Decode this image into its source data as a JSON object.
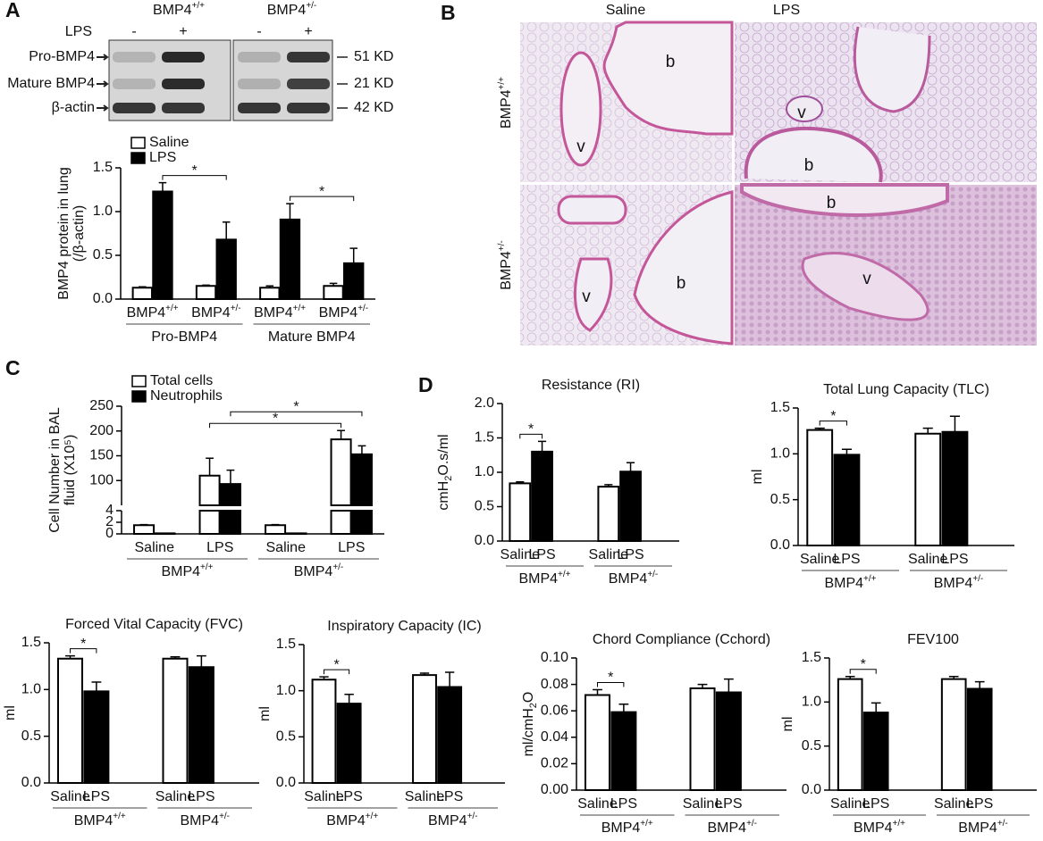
{
  "panel_labels": [
    "A",
    "B",
    "C",
    "D"
  ],
  "blot": {
    "genotypes": [
      "BMP4+/+",
      "BMP4+/-"
    ],
    "treatment": "LPS",
    "lanes": [
      "-",
      "+",
      "-",
      "+"
    ],
    "rows": [
      {
        "label": "Pro-BMP4",
        "size": "51 KD"
      },
      {
        "label": "Mature BMP4",
        "size": "21 KD"
      },
      {
        "label": "β-actin",
        "size": "42 KD"
      }
    ]
  },
  "histology": {
    "columns": [
      "Saline",
      "LPS"
    ],
    "rows": [
      "BMP4+/+",
      "BMP4+/-"
    ],
    "marks": [
      [
        "v",
        "b"
      ],
      [
        "v",
        "b"
      ],
      [
        "v",
        "b"
      ],
      [
        "b",
        "v"
      ]
    ]
  },
  "chart_data": [
    {
      "type": "bar",
      "ylabel": [
        "BMP4 protein in lung",
        "(/β-actin)"
      ],
      "categories": [
        "BMP4+/+",
        "BMP4+/-",
        "BMP4+/+",
        "BMP4+/-"
      ],
      "groups": [
        "Pro-BMP4",
        "Mature BMP4"
      ],
      "series": [
        {
          "name": "Saline",
          "color": "#ffffff",
          "values": [
            0.13,
            0.15,
            0.13,
            0.15
          ],
          "errors": [
            0.01,
            0.01,
            0.02,
            0.03
          ]
        },
        {
          "name": "LPS",
          "color": "#000000",
          "values": [
            1.23,
            0.68,
            0.91,
            0.41
          ],
          "errors": [
            0.1,
            0.2,
            0.18,
            0.17
          ]
        }
      ],
      "ylim": [
        0,
        1.5
      ],
      "yticks": [
        {
          "value": 0,
          "label": "0.0"
        },
        {
          "value": 0.5,
          "label": "0.5"
        },
        {
          "value": 1,
          "label": "1.0"
        },
        {
          "value": 1.5,
          "label": "1.5"
        }
      ],
      "legend": "top-left",
      "comparisons": [
        {
          "label": "*",
          "between": [
            [
              1,
              0
            ],
            [
              1,
              1
            ]
          ]
        },
        {
          "label": "*",
          "between": [
            [
              1,
              2
            ],
            [
              1,
              3
            ]
          ]
        }
      ]
    },
    {
      "type": "bar",
      "ylabel": [
        "Cell Number in BAL",
        "fluid (X10⁵)"
      ],
      "categories": [
        "Saline",
        "LPS",
        "Saline",
        "LPS"
      ],
      "groups": [
        "BMP4+/+",
        "BMP4+/-"
      ],
      "series": [
        {
          "name": "Total cells",
          "color": "#ffffff",
          "values": [
            1.5,
            110,
            1.5,
            183
          ],
          "errors": [
            0.1,
            35,
            0.1,
            18
          ]
        },
        {
          "name": "Neutrophils",
          "color": "#000000",
          "values": [
            0.1,
            93,
            0.1,
            153
          ],
          "errors": [
            0,
            28,
            0,
            17
          ]
        }
      ],
      "ylim": [
        0,
        250
      ],
      "ybreak": [
        4,
        50
      ],
      "yticks": [
        0,
        2,
        4,
        100,
        150,
        200,
        250
      ],
      "legend": "top-left",
      "comparisons": [
        {
          "label": "*",
          "between": [
            [
              0,
              1
            ],
            [
              0,
              3
            ]
          ]
        },
        {
          "label": "*",
          "between": [
            [
              1,
              1
            ],
            [
              1,
              3
            ]
          ]
        }
      ]
    },
    {
      "type": "bar",
      "title": "Resistance (RI)",
      "ylabel": "cmH2O.s/ml",
      "categories": [
        "Saline",
        "LPS",
        "Saline",
        "LPS"
      ],
      "groups": [
        "BMP4+/+",
        "BMP4+/-"
      ],
      "values": [
        0.84,
        1.3,
        0.79,
        1.01
      ],
      "errors": [
        0.02,
        0.15,
        0.03,
        0.13
      ],
      "colors": [
        "#ffffff",
        "#000000",
        "#ffffff",
        "#000000"
      ],
      "ylim": [
        0,
        2
      ],
      "yticks": [
        {
          "value": 0,
          "label": "0.0"
        },
        {
          "value": 0.5,
          "label": "0.5"
        },
        {
          "value": 1,
          "label": "1.0"
        },
        {
          "value": 1.5,
          "label": "1.5"
        },
        {
          "value": 2,
          "label": "2.0"
        }
      ],
      "comparisons": [
        {
          "label": "*",
          "between": [
            0,
            1
          ]
        }
      ]
    },
    {
      "type": "bar",
      "title": "Total Lung Capacity (TLC)",
      "ylabel": "ml",
      "categories": [
        "Saline",
        "LPS",
        "Saline",
        "LPS"
      ],
      "groups": [
        "BMP4+/+",
        "BMP4+/-"
      ],
      "values": [
        1.26,
        0.99,
        1.22,
        1.24
      ],
      "errors": [
        0.02,
        0.06,
        0.06,
        0.17
      ],
      "colors": [
        "#ffffff",
        "#000000",
        "#ffffff",
        "#000000"
      ],
      "ylim": [
        0,
        1.5
      ],
      "yticks": [
        {
          "value": 0,
          "label": "0.0"
        },
        {
          "value": 0.5,
          "label": "0.5"
        },
        {
          "value": 1,
          "label": "1.0"
        },
        {
          "value": 1.5,
          "label": "1.5"
        }
      ],
      "comparisons": [
        {
          "label": "*",
          "between": [
            0,
            1
          ]
        }
      ]
    },
    {
      "type": "bar",
      "title": "Forced Vital Capacity (FVC)",
      "ylabel": "ml",
      "categories": [
        "Saline",
        "LPS",
        "Saline",
        "LPS"
      ],
      "groups": [
        "BMP4+/+",
        "BMP4+/-"
      ],
      "values": [
        1.33,
        0.98,
        1.33,
        1.24
      ],
      "errors": [
        0.03,
        0.1,
        0.02,
        0.12
      ],
      "colors": [
        "#ffffff",
        "#000000",
        "#ffffff",
        "#000000"
      ],
      "ylim": [
        0,
        1.5
      ],
      "yticks": [
        {
          "value": 0,
          "label": "0.0"
        },
        {
          "value": 0.5,
          "label": "0.5"
        },
        {
          "value": 1,
          "label": "1.0"
        },
        {
          "value": 1.5,
          "label": "1.5"
        }
      ],
      "comparisons": [
        {
          "label": "*",
          "between": [
            0,
            1
          ]
        }
      ]
    },
    {
      "type": "bar",
      "title": "Inspiratory Capacity (IC)",
      "ylabel": "ml",
      "categories": [
        "Saline",
        "LPS",
        "Saline",
        "LPS"
      ],
      "groups": [
        "BMP4+/+",
        "BMP4+/-"
      ],
      "values": [
        1.12,
        0.86,
        1.17,
        1.04
      ],
      "errors": [
        0.03,
        0.1,
        0.02,
        0.16
      ],
      "colors": [
        "#ffffff",
        "#000000",
        "#ffffff",
        "#000000"
      ],
      "ylim": [
        0,
        1.5
      ],
      "yticks": [
        {
          "value": 0,
          "label": "0.0"
        },
        {
          "value": 0.5,
          "label": "0.5"
        },
        {
          "value": 1,
          "label": "1.0"
        },
        {
          "value": 1.5,
          "label": "1.5"
        }
      ],
      "comparisons": [
        {
          "label": "*",
          "between": [
            0,
            1
          ]
        }
      ]
    },
    {
      "type": "bar",
      "title": "Chord Compliance (Cchord)",
      "ylabel": "ml/cmH2O",
      "categories": [
        "Saline",
        "LPS",
        "Saline",
        "LPS"
      ],
      "groups": [
        "BMP4+/+",
        "BMP4+/-"
      ],
      "values": [
        0.072,
        0.059,
        0.077,
        0.074
      ],
      "errors": [
        0.004,
        0.006,
        0.003,
        0.01
      ],
      "colors": [
        "#ffffff",
        "#000000",
        "#ffffff",
        "#000000"
      ],
      "ylim": [
        0,
        0.1
      ],
      "yticks": [
        {
          "value": 0,
          "label": "0.00"
        },
        {
          "value": 0.02,
          "label": "0.02"
        },
        {
          "value": 0.04,
          "label": "0.04"
        },
        {
          "value": 0.06,
          "label": "0.06"
        },
        {
          "value": 0.08,
          "label": "0.08"
        },
        {
          "value": 0.1,
          "label": "0.10"
        }
      ],
      "comparisons": [
        {
          "label": "*",
          "between": [
            0,
            1
          ]
        }
      ]
    },
    {
      "type": "bar",
      "title": "FEV100",
      "ylabel": "ml",
      "categories": [
        "Saline",
        "LPS",
        "Saline",
        "LPS"
      ],
      "groups": [
        "BMP4+/+",
        "BMP4+/-"
      ],
      "values": [
        1.26,
        0.88,
        1.26,
        1.15
      ],
      "errors": [
        0.03,
        0.11,
        0.03,
        0.08
      ],
      "colors": [
        "#ffffff",
        "#000000",
        "#ffffff",
        "#000000"
      ],
      "ylim": [
        0,
        1.5
      ],
      "yticks": [
        {
          "value": 0,
          "label": "0.0"
        },
        {
          "value": 0.5,
          "label": "0.5"
        },
        {
          "value": 1,
          "label": "1.0"
        },
        {
          "value": 1.5,
          "label": "1.5"
        }
      ],
      "comparisons": [
        {
          "label": "*",
          "between": [
            0,
            1
          ]
        }
      ]
    }
  ]
}
